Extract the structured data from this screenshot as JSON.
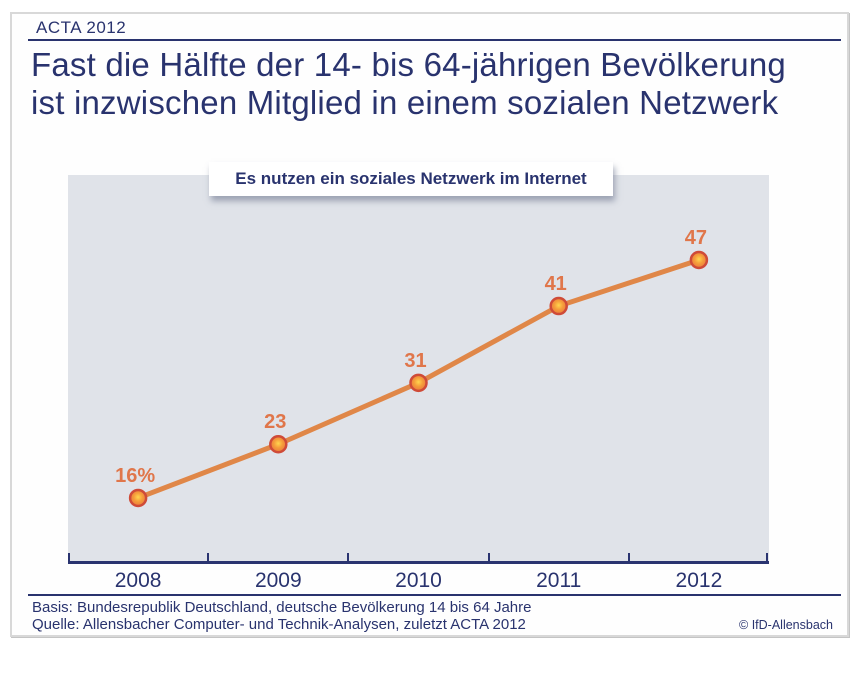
{
  "header": {
    "tag": "ACTA 2012"
  },
  "title": {
    "line1": "Fast die Hälfte der 14- bis 64-jährigen Bevölkerung",
    "line2": "ist inzwischen Mitglied in einem sozialen Netzwerk"
  },
  "chart_data": {
    "type": "line",
    "title": "Es nutzen ein soziales Netzwerk im Internet",
    "categories": [
      "2008",
      "2009",
      "2010",
      "2011",
      "2012"
    ],
    "values": [
      16,
      23,
      31,
      41,
      47
    ],
    "point_labels": [
      "16%",
      "23",
      "31",
      "41",
      "47"
    ],
    "unit": "percent of 14-64 year old German population",
    "ylabel": "",
    "xlabel": "",
    "axis_value_labels_shown": false,
    "grid": false,
    "legend": "none"
  },
  "footer": {
    "basis": "Basis: Bundesrepublik Deutschland, deutsche Bevölkerung 14 bis 64 Jahre",
    "quelle": "Quelle: Allensbacher Computer- und Technik-Analysen, zuletzt ACTA 2012",
    "copyright": "© IfD-Allensbach"
  },
  "colors": {
    "navy": "#29336e",
    "line_orange": "#e08748",
    "label_orange": "#e0764a",
    "marker_stroke": "#cf4b38",
    "marker_mid": "#f59d3b",
    "marker_center": "#ffd54f",
    "plot_background": "#e0e3e9"
  }
}
